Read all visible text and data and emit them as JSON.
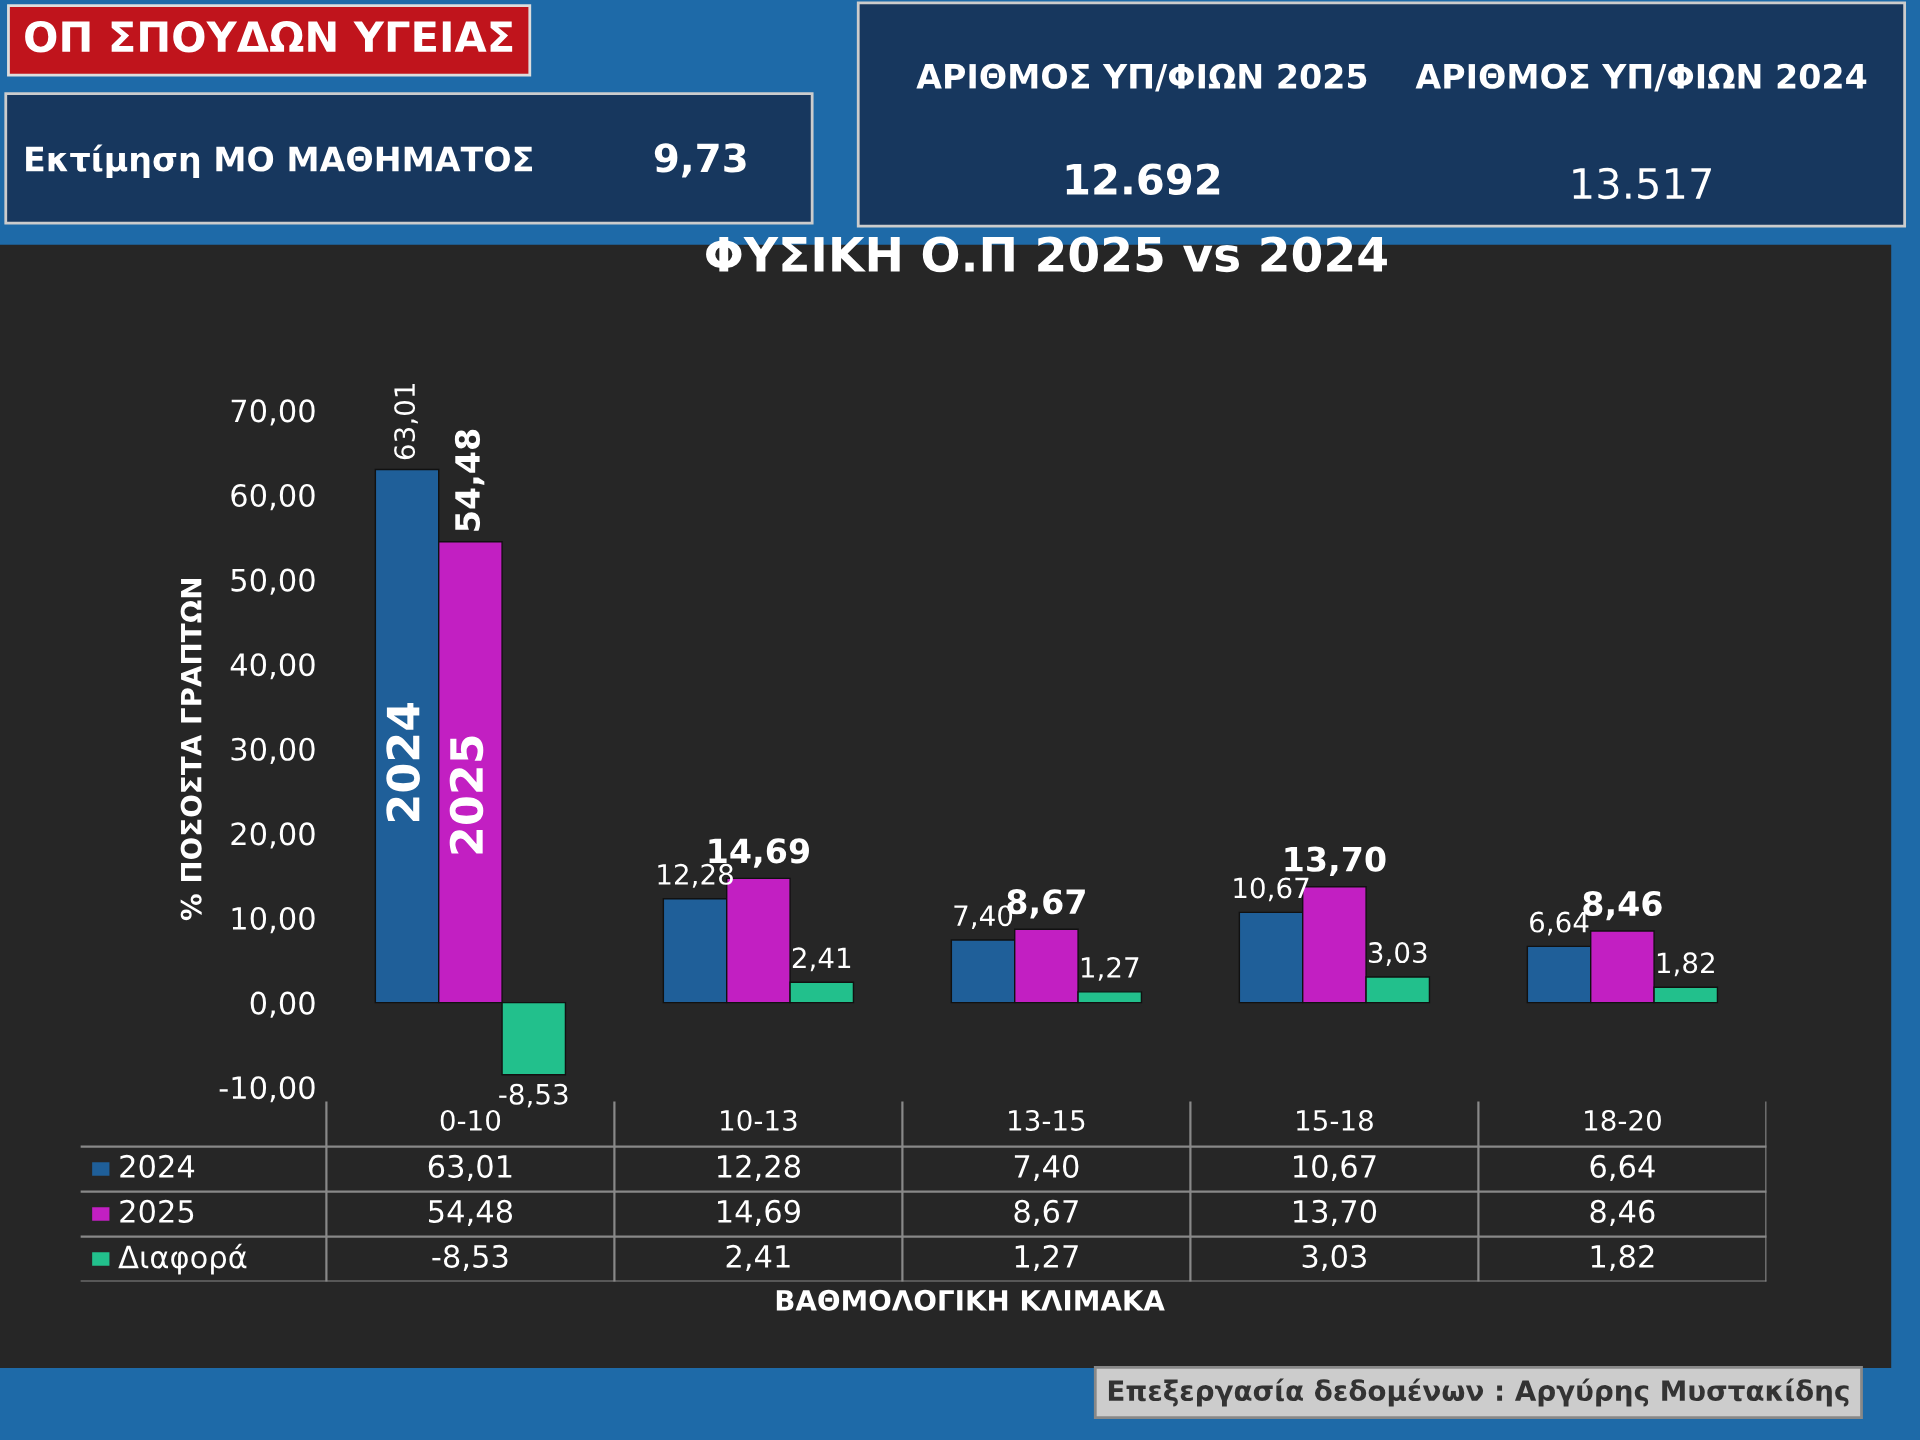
{
  "chart_data": {
    "type": "bar",
    "title": "ΦΥΣΙΚΗ Ο.Π 2025 vs 2024",
    "ylabel": "% ΠΟΣΟΣΤΑ ΓΡΑΠΤΩΝ",
    "categories": [
      "0-10",
      "10-13",
      "13-15",
      "15-18",
      "18-20"
    ],
    "series": [
      {
        "name": "2024",
        "color": "#1f5f99",
        "values": [
          63.01,
          12.28,
          7.4,
          10.67,
          6.64
        ],
        "value_labels": [
          "63,01",
          "12,28",
          "7,40",
          "10,67",
          "6,64"
        ]
      },
      {
        "name": "2025",
        "color": "#c21fc2",
        "values": [
          54.48,
          14.69,
          8.67,
          13.7,
          8.46
        ],
        "value_labels": [
          "54,48",
          "14,69",
          "8,67",
          "13,70",
          "8,46"
        ]
      },
      {
        "name": "Διαφορά",
        "color": "#22c08c",
        "values": [
          -8.53,
          2.41,
          1.27,
          3.03,
          1.82
        ],
        "value_labels": [
          "-8,53",
          "2,41",
          "1,27",
          "3,03",
          "1,82"
        ]
      }
    ],
    "ylim": [
      -10,
      70
    ],
    "yticks": [
      {
        "value": -10,
        "label": "-10,00"
      },
      {
        "value": 0,
        "label": "0,00"
      },
      {
        "value": 10,
        "label": "10,00"
      },
      {
        "value": 20,
        "label": "20,00"
      },
      {
        "value": 30,
        "label": "30,00"
      },
      {
        "value": 40,
        "label": "40,00"
      },
      {
        "value": 50,
        "label": "50,00"
      },
      {
        "value": 60,
        "label": "60,00"
      },
      {
        "value": 70,
        "label": "70,00"
      }
    ],
    "grid": false,
    "legend": "bottom",
    "annotations": [
      "ΟΠ ΣΠΟΥΔΩΝ ΥΓΕΙΑΣ",
      "Εκτίμηση ΜΟ ΜΑΘΗΜΑΤΟΣ",
      "9,73",
      "ΑΡΙΘΜΟΣ ΥΠ/ΦΙΩΝ 2025",
      "12.692",
      "ΑΡΙΘΜΟΣ ΥΠ/ΦΙΩΝ 2024",
      "13.517",
      "Επεξεργασία δεδομένων : Αργύρης Μυστακίδης",
      "ΒΑΘΜΟΛΟΓΙΚΗ ΚΛΙΜΑΚΑ"
    ]
  }
}
